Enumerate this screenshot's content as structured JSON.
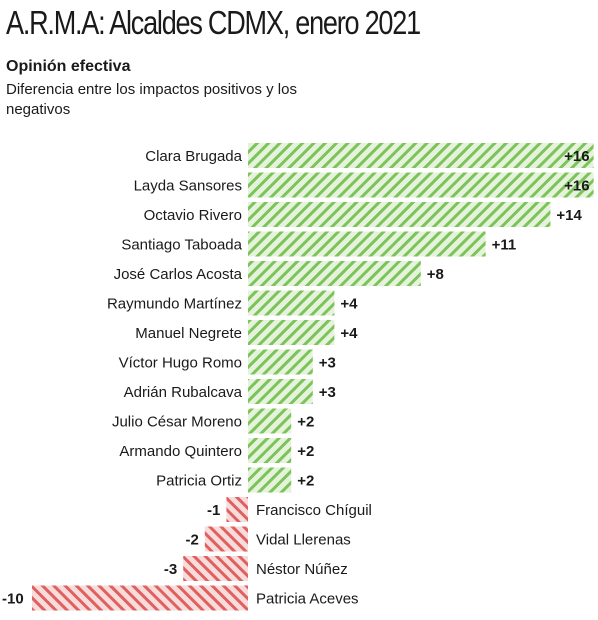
{
  "title": "A.R.M.A: Alcaldes CDMX, enero 2021",
  "subtitle": "Opinión efectiva",
  "description": "Diferencia entre los impactos positivos y los negativos",
  "colors": {
    "positive": "#7cc35a",
    "positive_bg": "#e6f3dc",
    "negative": "#e06060",
    "negative_bg": "#f7dcdc"
  },
  "chart_data": {
    "type": "bar",
    "orientation": "horizontal",
    "title": "A.R.M.A: Alcaldes CDMX, enero 2021",
    "subtitle": "Opinión efectiva",
    "categories": [
      "Clara Brugada",
      "Layda Sansores",
      "Octavio Rivero",
      "Santiago Taboada",
      "José Carlos Acosta",
      "Raymundo Martínez",
      "Manuel Negrete",
      "Víctor Hugo Romo",
      "Adrián Rubalcava",
      "Julio César Moreno",
      "Armando Quintero",
      "Patricia Ortiz",
      "Francisco Chíguil",
      "Vidal Llerenas",
      "Néstor Núñez",
      "Patricia Aceves"
    ],
    "values": [
      16,
      16,
      14,
      11,
      8,
      4,
      4,
      3,
      3,
      2,
      2,
      2,
      -1,
      -2,
      -3,
      -10
    ],
    "value_labels": [
      "+16",
      "+16",
      "+14",
      "+11",
      "+8",
      "+4",
      "+4",
      "+3",
      "+3",
      "+2",
      "+2",
      "+2",
      "-1",
      "-2",
      "-3",
      "-10"
    ],
    "xlim": [
      -10,
      16
    ],
    "grid": false,
    "legend": "none"
  }
}
